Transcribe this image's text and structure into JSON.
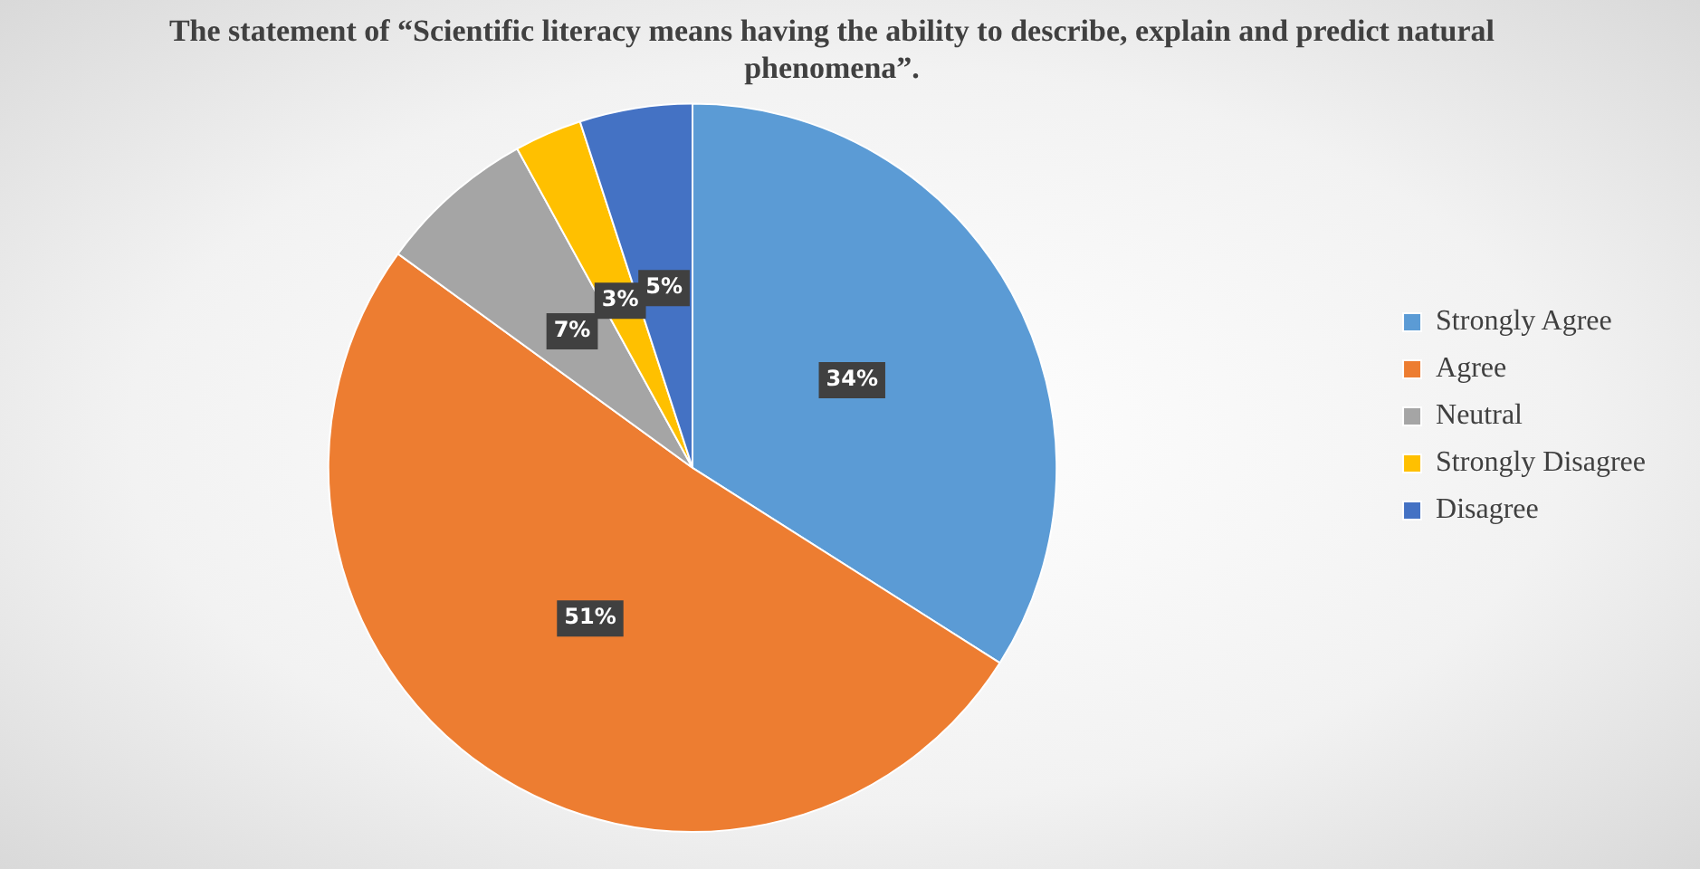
{
  "chart_data": {
    "type": "pie",
    "title": "The statement of “Scientific literacy means having the ability to describe, explain and predict natural phenomena”.",
    "categories": [
      "Strongly Agree",
      "Agree",
      "Neutral",
      "Strongly Disagree",
      "Disagree"
    ],
    "values": [
      34,
      51,
      7,
      3,
      5
    ],
    "colors": [
      "#5b9bd5",
      "#ed7d31",
      "#a5a5a5",
      "#ffc000",
      "#4472c4"
    ],
    "value_labels": [
      "34%",
      "51%",
      "7%",
      "3%",
      "5%"
    ],
    "legend": "right"
  }
}
